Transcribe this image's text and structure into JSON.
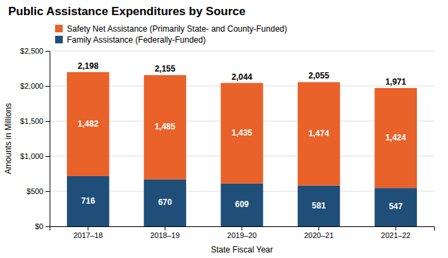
{
  "chart_data": {
    "type": "bar",
    "stacked": true,
    "title": "Public Assistance Expenditures by Source",
    "xlabel": "State Fiscal Year",
    "ylabel": "Amounts in Millions",
    "categories": [
      "2017–18",
      "2018–19",
      "2019–20",
      "2020–21",
      "2021–22"
    ],
    "series": [
      {
        "name": "Family Assistance (Federally-Funded)",
        "color": "#1F4E79",
        "values": [
          716,
          670,
          609,
          581,
          547
        ]
      },
      {
        "name": "Safety Net Assistance (Primarily State- and County-Funded)",
        "color": "#E8622A",
        "values": [
          1482,
          1485,
          1435,
          1474,
          1424
        ],
        "value_labels": [
          "1,482",
          "1,485",
          "1,435",
          "1,474",
          "1,424"
        ]
      }
    ],
    "totals": [
      2198,
      2155,
      2044,
      2055,
      1971
    ],
    "total_labels": [
      "2,198",
      "2,155",
      "2,044",
      "2,055",
      "1,971"
    ],
    "ylim": [
      0,
      2500
    ],
    "yticks": [
      {
        "value": 0,
        "label": "$0"
      },
      {
        "value": 500,
        "label": "$500"
      },
      {
        "value": 1000,
        "label": "$1,000"
      },
      {
        "value": 1500,
        "label": "$1,500"
      },
      {
        "value": 2000,
        "label": "$2,000"
      },
      {
        "value": 2500,
        "label": "$2,500"
      }
    ],
    "grid": true,
    "legend": "upper left",
    "data_labels": true
  }
}
